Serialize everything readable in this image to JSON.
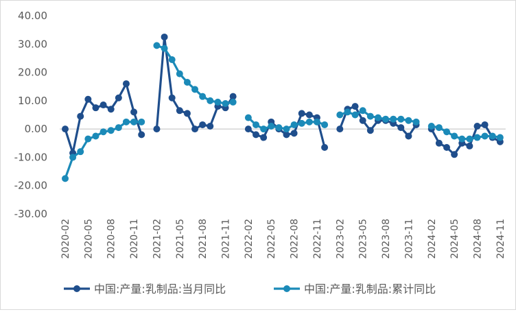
{
  "chart_data": {
    "type": "line",
    "title": "",
    "xlabel": "",
    "ylabel": "",
    "ylim": [
      -30,
      40
    ],
    "ytick_step": 10,
    "ytick_labels": [
      "40.00",
      "30.00",
      "20.00",
      "10.00",
      "0.00",
      "-10.00",
      "-20.00",
      "-30.00"
    ],
    "grid": false,
    "legend_position": "bottom",
    "x": [
      "2020-02",
      "2020-03",
      "2020-04",
      "2020-05",
      "2020-06",
      "2020-07",
      "2020-08",
      "2020-09",
      "2020-10",
      "2020-11",
      "2020-12",
      "2021-01",
      "2021-02",
      "2021-03",
      "2021-04",
      "2021-05",
      "2021-06",
      "2021-07",
      "2021-08",
      "2021-09",
      "2021-10",
      "2021-11",
      "2021-12",
      "2022-01",
      "2022-02",
      "2022-03",
      "2022-04",
      "2022-05",
      "2022-06",
      "2022-07",
      "2022-08",
      "2022-09",
      "2022-10",
      "2022-11",
      "2022-12",
      "2023-01",
      "2023-02",
      "2023-03",
      "2023-04",
      "2023-05",
      "2023-06",
      "2023-07",
      "2023-08",
      "2023-09",
      "2023-10",
      "2023-11",
      "2023-12",
      "2024-01",
      "2024-02",
      "2024-03",
      "2024-04",
      "2024-05",
      "2024-06",
      "2024-07",
      "2024-08",
      "2024-09",
      "2024-10",
      "2024-11"
    ],
    "xtick_labels": [
      "2020-02",
      "2020-05",
      "2020-08",
      "2020-11",
      "2021-02",
      "2021-05",
      "2021-08",
      "2021-11",
      "2022-02",
      "2022-05",
      "2022-08",
      "2022-11",
      "2023-02",
      "2023-05",
      "2023-08",
      "2023-11",
      "2024-02",
      "2024-05",
      "2024-08",
      "2024-11"
    ],
    "series": [
      {
        "name": "中国:产量:乳制品:当月同比",
        "color": "#1f4e8c",
        "values": [
          0.0,
          -8.5,
          4.5,
          10.5,
          7.5,
          8.5,
          7.0,
          11.0,
          16.0,
          6.0,
          -2.0,
          null,
          0.0,
          32.5,
          11.0,
          6.5,
          5.5,
          0.0,
          1.5,
          1.0,
          8.0,
          7.5,
          11.5,
          null,
          0.0,
          -2.0,
          -3.0,
          2.5,
          0.0,
          -2.0,
          -1.5,
          5.5,
          5.0,
          4.0,
          -6.5,
          null,
          0.0,
          7.0,
          8.0,
          3.0,
          -0.5,
          3.0,
          3.0,
          2.0,
          0.5,
          -2.5,
          1.5,
          null,
          0.0,
          -5.0,
          -6.5,
          -9.0,
          -5.0,
          -6.0,
          1.0,
          1.5,
          -3.0,
          -4.5
        ]
      },
      {
        "name": "中国:产量:乳制品:累计同比",
        "color": "#1b8ab8",
        "values": [
          -17.5,
          -10.0,
          -8.0,
          -3.5,
          -2.5,
          -1.0,
          -0.5,
          0.5,
          2.5,
          2.5,
          2.5,
          null,
          29.5,
          28.5,
          24.5,
          19.5,
          16.5,
          14.0,
          11.5,
          10.0,
          9.5,
          9.0,
          9.5,
          null,
          4.0,
          1.5,
          0.0,
          1.0,
          0.5,
          0.0,
          1.5,
          2.0,
          2.5,
          2.5,
          1.5,
          null,
          5.0,
          6.0,
          5.0,
          6.5,
          4.5,
          4.0,
          3.5,
          3.5,
          3.5,
          3.0,
          2.5,
          null,
          1.0,
          0.5,
          -1.0,
          -2.5,
          -3.5,
          -3.5,
          -3.0,
          -2.5,
          -2.5,
          -3.0
        ]
      }
    ]
  }
}
